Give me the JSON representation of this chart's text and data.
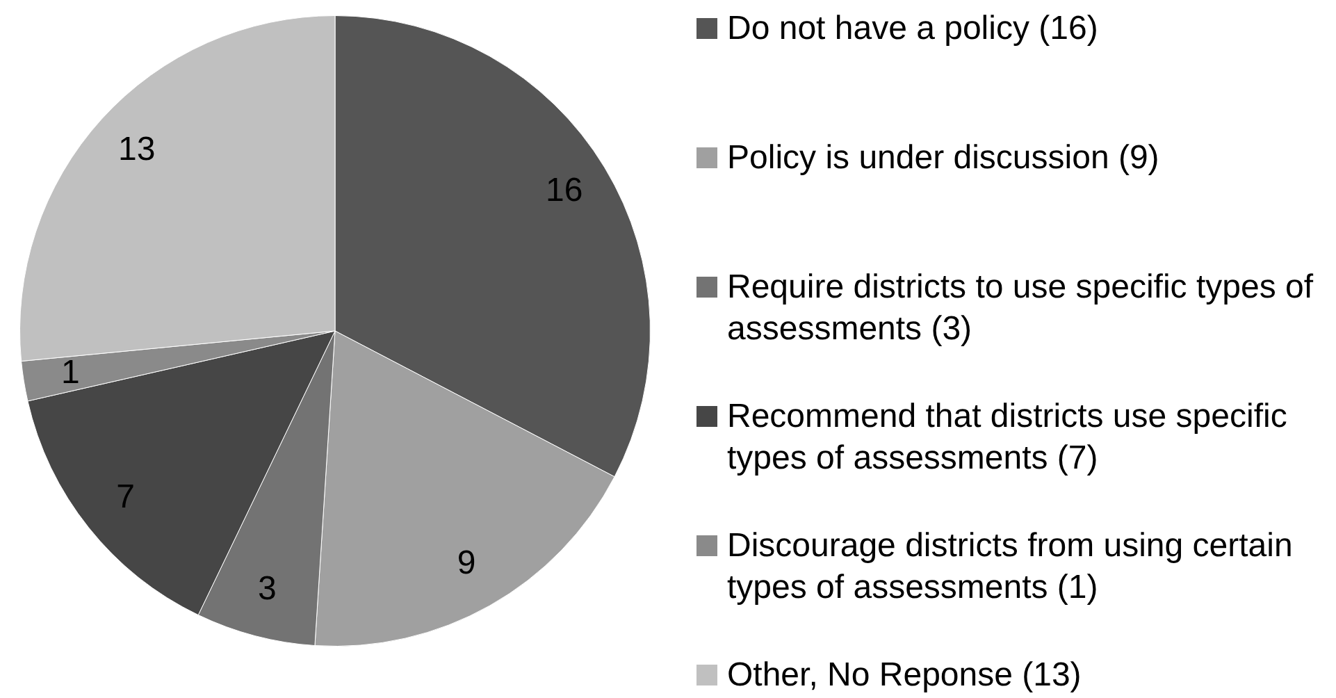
{
  "chart_data": {
    "type": "pie",
    "categories": [
      "Do not have a policy (16)",
      "Policy is under discussion (9)",
      "Require districts to use specific types of assessments (3)",
      "Recommend that districts use specific types of assessments (7)",
      "Discourage districts from using certain types of assessments (1)",
      "Other, No Reponse (13)"
    ],
    "values": [
      16,
      9,
      3,
      7,
      1,
      13
    ],
    "colors": [
      "#555555",
      "#a0a0a0",
      "#737373",
      "#464646",
      "#8a8a8a",
      "#c0c0c0"
    ],
    "data_labels": true,
    "legend": "right"
  }
}
